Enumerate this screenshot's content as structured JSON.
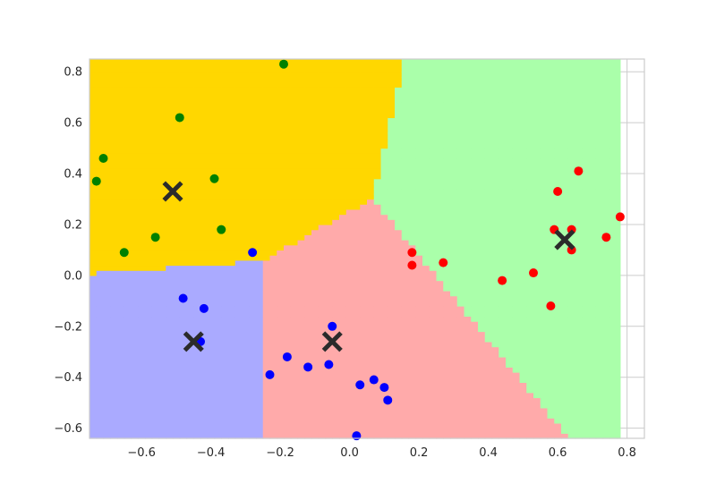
{
  "chart_data": {
    "type": "scatter",
    "title": "",
    "xlabel": "",
    "ylabel": "",
    "xlim": [
      -0.75,
      0.85
    ],
    "ylim": [
      -0.64,
      0.85
    ],
    "grid": true,
    "xticks": [
      "−0.6",
      "−0.4",
      "−0.2",
      "0.0",
      "0.2",
      "0.4",
      "0.6",
      "0.8"
    ],
    "xtick_values": [
      -0.6,
      -0.4,
      -0.2,
      0.0,
      0.2,
      0.4,
      0.6,
      0.8
    ],
    "yticks": [
      "−0.6",
      "−0.4",
      "−0.2",
      "0.0",
      "0.2",
      "0.4",
      "0.6",
      "0.8"
    ],
    "ytick_values": [
      -0.6,
      -0.4,
      -0.2,
      0.0,
      0.2,
      0.4,
      0.6,
      0.8
    ],
    "region_colors": {
      "yellow": "#FFD700",
      "green": "#AAFFAA",
      "red": "#FFAAAA",
      "blue": "#AAAAFF"
    },
    "series": [
      {
        "color": "#008000",
        "points": [
          [
            -0.19,
            0.83
          ],
          [
            -0.49,
            0.62
          ],
          [
            -0.71,
            0.46
          ],
          [
            -0.73,
            0.37
          ],
          [
            -0.39,
            0.38
          ],
          [
            -0.37,
            0.18
          ],
          [
            -0.56,
            0.15
          ],
          [
            -0.65,
            0.09
          ]
        ]
      },
      {
        "color": "#FF0000",
        "points": [
          [
            0.66,
            0.41
          ],
          [
            0.6,
            0.33
          ],
          [
            0.78,
            0.23
          ],
          [
            0.59,
            0.18
          ],
          [
            0.64,
            0.18
          ],
          [
            0.74,
            0.15
          ],
          [
            0.64,
            0.1
          ],
          [
            0.53,
            0.01
          ],
          [
            0.44,
            -0.02
          ],
          [
            0.58,
            -0.12
          ],
          [
            0.18,
            0.09
          ],
          [
            0.18,
            0.04
          ],
          [
            0.27,
            0.05
          ]
        ]
      },
      {
        "color": "#0000FF",
        "points": [
          [
            -0.28,
            0.09
          ],
          [
            -0.48,
            -0.09
          ],
          [
            -0.42,
            -0.13
          ],
          [
            -0.43,
            -0.26
          ],
          [
            -0.05,
            -0.2
          ],
          [
            -0.18,
            -0.32
          ],
          [
            -0.12,
            -0.36
          ],
          [
            -0.06,
            -0.35
          ],
          [
            -0.23,
            -0.39
          ],
          [
            0.07,
            -0.41
          ],
          [
            0.03,
            -0.43
          ],
          [
            0.1,
            -0.44
          ],
          [
            0.11,
            -0.49
          ],
          [
            0.02,
            -0.63
          ]
        ]
      }
    ],
    "centroids": {
      "color": "#2b2b2b",
      "points": [
        [
          -0.51,
          0.33
        ],
        [
          0.62,
          0.14
        ],
        [
          -0.45,
          -0.26
        ],
        [
          -0.05,
          -0.26
        ]
      ]
    }
  }
}
